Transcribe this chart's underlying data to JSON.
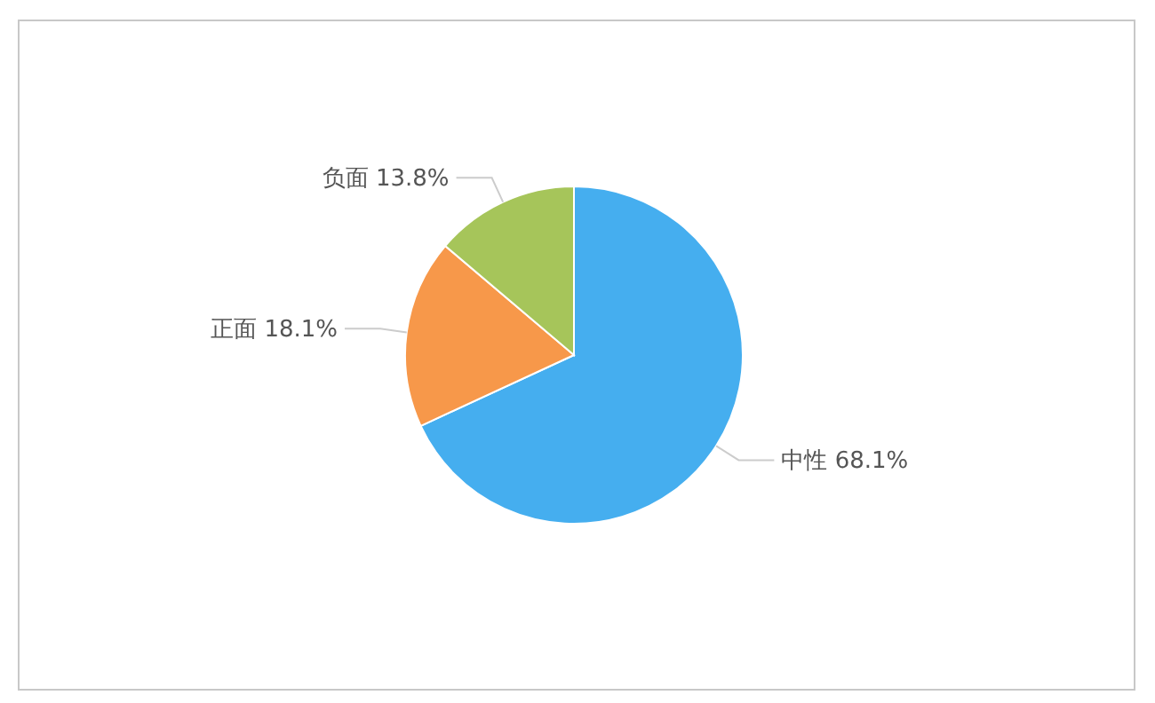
{
  "chart_data": {
    "type": "pie",
    "categories": [
      "中性",
      "正面",
      "负面"
    ],
    "values": [
      68.1,
      18.1,
      13.8
    ],
    "value_labels": [
      "68.1%",
      "18.1%",
      "13.8%"
    ],
    "colors": [
      "#45aeef",
      "#f7984a",
      "#a6c55a"
    ],
    "legend": false
  }
}
